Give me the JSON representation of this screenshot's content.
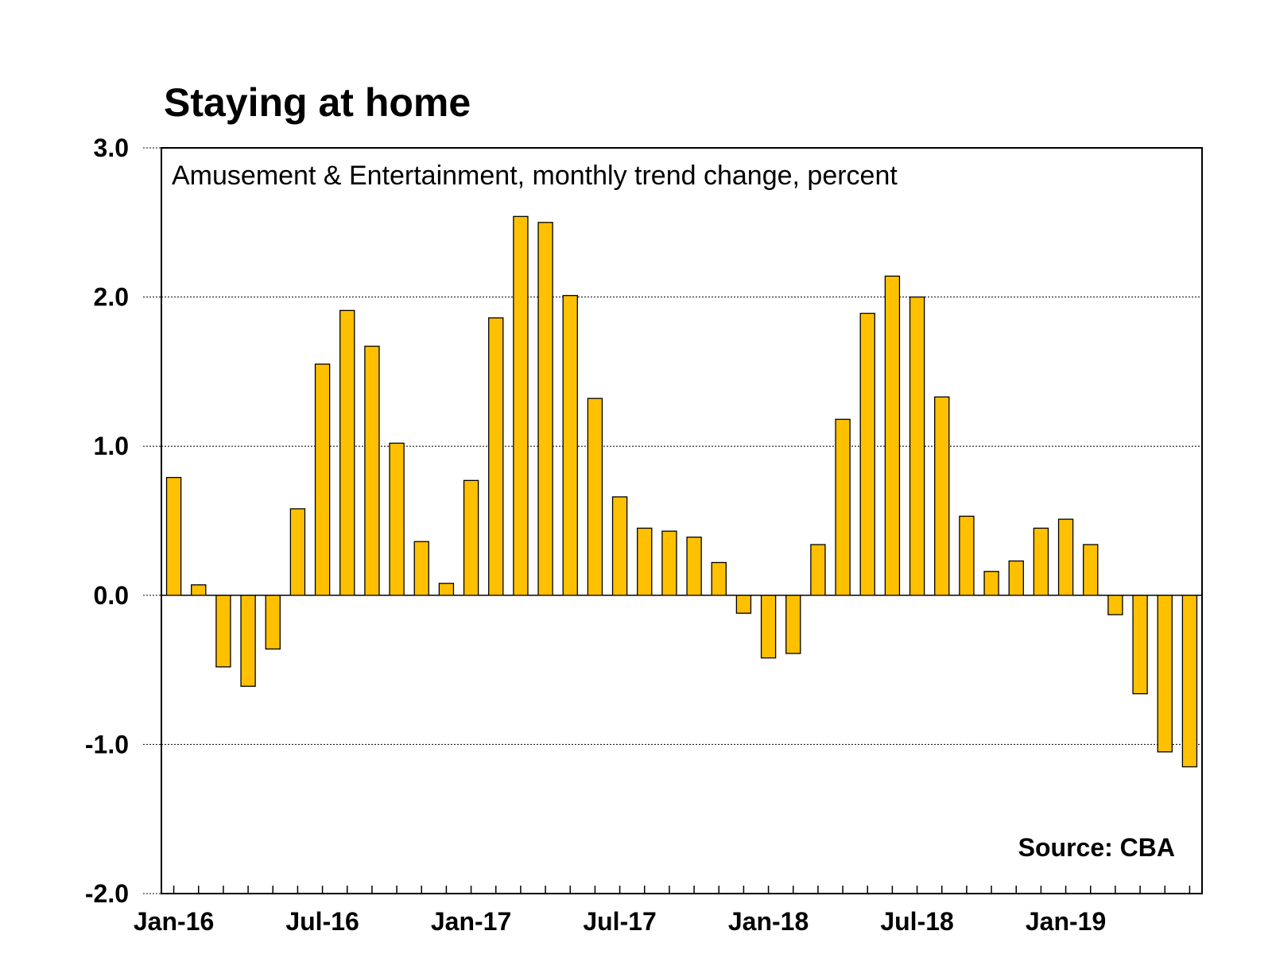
{
  "title": "Staying at home",
  "chart_data": {
    "type": "bar",
    "title": "Staying at home",
    "subtitle": "Amusement & Entertainment, monthly trend change, percent",
    "source": "Source: CBA",
    "xlabel": "",
    "ylabel": "",
    "ylim": [
      -2.0,
      3.0
    ],
    "yticks": [
      3.0,
      2.0,
      1.0,
      0.0,
      -1.0,
      -2.0
    ],
    "ytick_labels": [
      "3.0",
      "2.0",
      "1.0",
      "0.0",
      "-1.0",
      "-2.0"
    ],
    "xtick_labels": [
      "Jan-16",
      "Jul-16",
      "Jan-17",
      "Jul-17",
      "Jan-18",
      "Jul-18",
      "Jan-19"
    ],
    "grid": true,
    "bar_color": "#FFC000",
    "categories": [
      "Jan-16",
      "Feb-16",
      "Mar-16",
      "Apr-16",
      "May-16",
      "Jun-16",
      "Jul-16",
      "Aug-16",
      "Sep-16",
      "Oct-16",
      "Nov-16",
      "Dec-16",
      "Jan-17",
      "Feb-17",
      "Mar-17",
      "Apr-17",
      "May-17",
      "Jun-17",
      "Jul-17",
      "Aug-17",
      "Sep-17",
      "Oct-17",
      "Nov-17",
      "Dec-17",
      "Jan-18",
      "Feb-18",
      "Mar-18",
      "Apr-18",
      "May-18",
      "Jun-18",
      "Jul-18",
      "Aug-18",
      "Sep-18",
      "Oct-18",
      "Nov-18",
      "Dec-18",
      "Jan-19",
      "Feb-19",
      "Mar-19",
      "Apr-19",
      "May-19",
      "Jun-19"
    ],
    "values": [
      0.79,
      0.07,
      -0.48,
      -0.61,
      -0.36,
      0.58,
      1.55,
      1.91,
      1.67,
      1.02,
      0.36,
      0.08,
      0.77,
      1.86,
      2.54,
      2.5,
      2.01,
      1.32,
      0.66,
      0.45,
      0.43,
      0.39,
      0.22,
      -0.12,
      -0.42,
      -0.39,
      0.34,
      1.18,
      1.89,
      2.14,
      2.0,
      1.33,
      0.53,
      0.16,
      0.23,
      0.45,
      0.51,
      0.34,
      -0.13,
      -0.66,
      -1.05,
      -1.15
    ]
  }
}
